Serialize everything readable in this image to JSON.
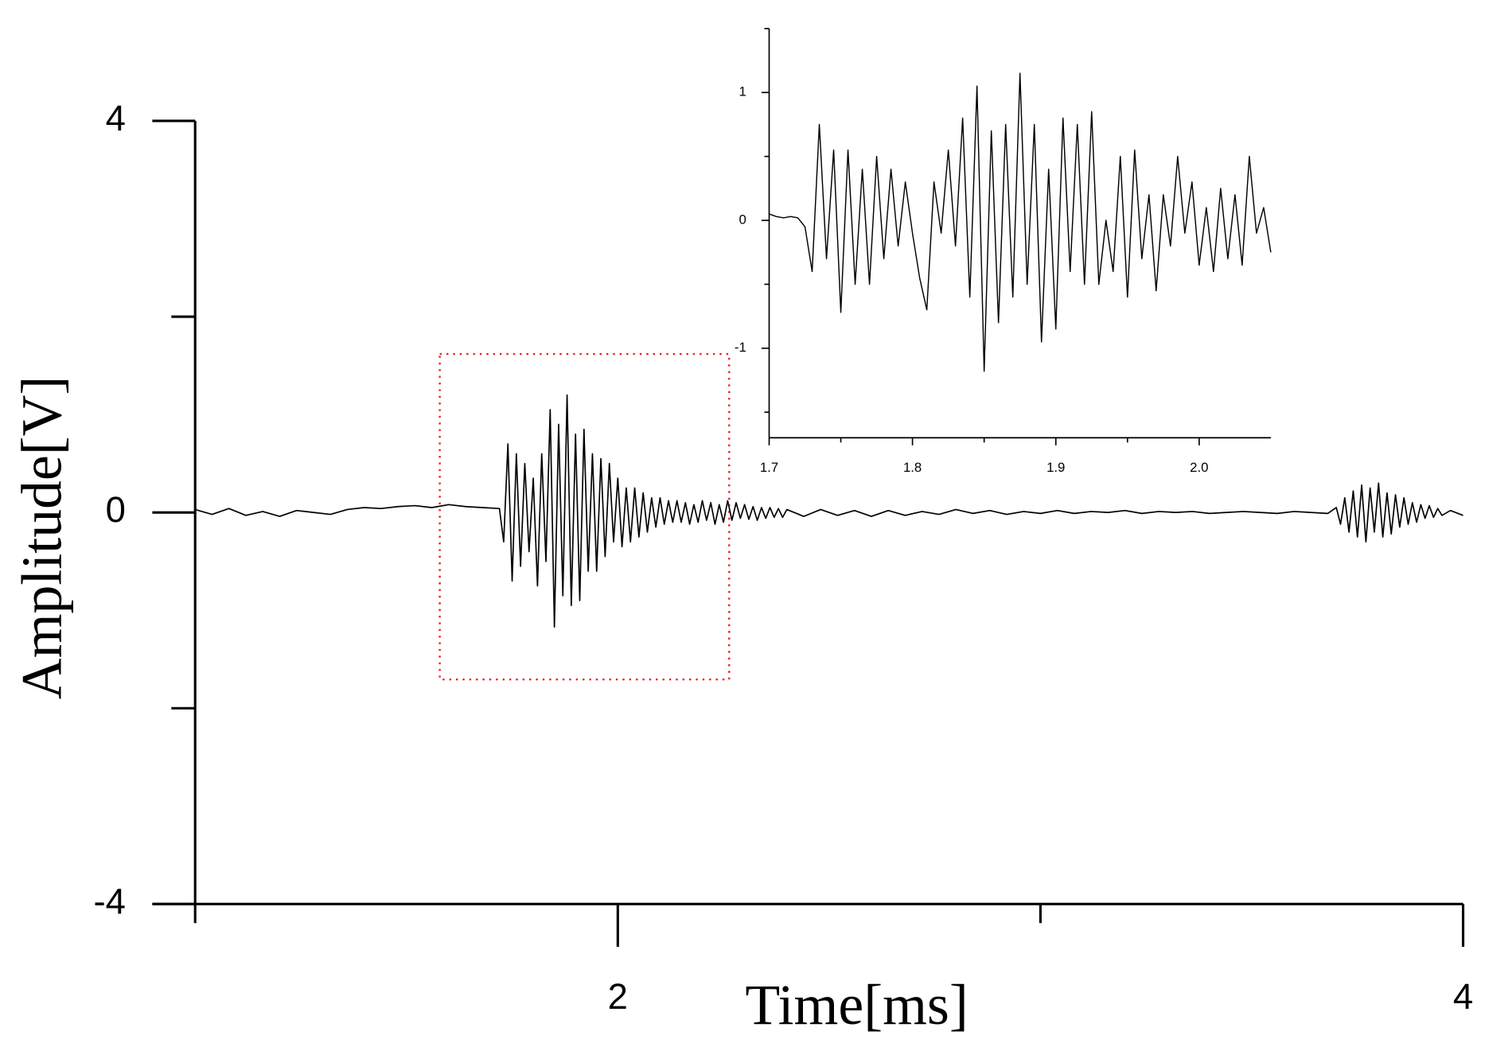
{
  "chart_data": [
    {
      "type": "line",
      "xlabel": "Time[ms]",
      "ylabel": "Amplitude[V]",
      "color": "#000000",
      "xlim": [
        1,
        4
      ],
      "ylim": [
        -4,
        4
      ],
      "xticks": [
        2,
        4
      ],
      "xminor_ticks": [
        1,
        3
      ],
      "yticks": [
        -4,
        0,
        4
      ],
      "yminor_ticks": [
        -2,
        2
      ],
      "x": [
        1.0,
        1.04,
        1.08,
        1.12,
        1.16,
        1.2,
        1.24,
        1.28,
        1.32,
        1.36,
        1.4,
        1.44,
        1.48,
        1.52,
        1.56,
        1.6,
        1.64,
        1.68,
        1.72,
        1.73,
        1.74,
        1.75,
        1.76,
        1.77,
        1.78,
        1.79,
        1.8,
        1.81,
        1.82,
        1.83,
        1.84,
        1.85,
        1.86,
        1.87,
        1.88,
        1.89,
        1.9,
        1.91,
        1.92,
        1.93,
        1.94,
        1.95,
        1.96,
        1.97,
        1.98,
        1.99,
        2.0,
        2.01,
        2.02,
        2.03,
        2.04,
        2.05,
        2.06,
        2.07,
        2.08,
        2.09,
        2.1,
        2.11,
        2.12,
        2.13,
        2.14,
        2.15,
        2.16,
        2.17,
        2.18,
        2.19,
        2.2,
        2.21,
        2.22,
        2.23,
        2.24,
        2.25,
        2.26,
        2.27,
        2.28,
        2.29,
        2.3,
        2.31,
        2.32,
        2.33,
        2.34,
        2.35,
        2.36,
        2.37,
        2.38,
        2.39,
        2.4,
        2.44,
        2.48,
        2.52,
        2.56,
        2.6,
        2.64,
        2.68,
        2.72,
        2.76,
        2.8,
        2.84,
        2.88,
        2.92,
        2.96,
        3.0,
        3.04,
        3.08,
        3.12,
        3.16,
        3.2,
        3.24,
        3.28,
        3.32,
        3.36,
        3.4,
        3.44,
        3.48,
        3.52,
        3.56,
        3.6,
        3.64,
        3.68,
        3.7,
        3.71,
        3.72,
        3.73,
        3.74,
        3.75,
        3.76,
        3.77,
        3.78,
        3.79,
        3.8,
        3.81,
        3.82,
        3.83,
        3.84,
        3.85,
        3.86,
        3.87,
        3.88,
        3.89,
        3.9,
        3.91,
        3.92,
        3.93,
        3.94,
        3.95,
        3.97,
        4.0
      ],
      "values": [
        0.03,
        -0.02,
        0.04,
        -0.03,
        0.01,
        -0.04,
        0.02,
        0.0,
        -0.02,
        0.03,
        0.05,
        0.04,
        0.06,
        0.07,
        0.05,
        0.08,
        0.06,
        0.05,
        0.04,
        -0.3,
        0.7,
        -0.7,
        0.6,
        -0.55,
        0.5,
        -0.4,
        0.35,
        -0.75,
        0.6,
        -0.5,
        1.05,
        -1.17,
        0.9,
        -0.85,
        1.2,
        -0.95,
        0.8,
        -0.9,
        0.85,
        -0.6,
        0.6,
        -0.6,
        0.55,
        -0.45,
        0.5,
        -0.3,
        0.35,
        -0.35,
        0.25,
        -0.3,
        0.25,
        -0.25,
        0.2,
        -0.2,
        0.15,
        -0.15,
        0.15,
        -0.12,
        0.12,
        -0.1,
        0.12,
        -0.1,
        0.1,
        -0.12,
        0.08,
        -0.1,
        0.12,
        -0.08,
        0.1,
        -0.12,
        0.08,
        -0.1,
        0.12,
        -0.08,
        0.1,
        -0.06,
        0.08,
        -0.07,
        0.06,
        -0.08,
        0.05,
        -0.06,
        0.05,
        -0.05,
        0.04,
        -0.05,
        0.03,
        -0.04,
        0.03,
        -0.03,
        0.02,
        -0.04,
        0.02,
        -0.03,
        0.01,
        -0.02,
        0.03,
        -0.01,
        0.02,
        -0.02,
        0.01,
        -0.01,
        0.02,
        -0.01,
        0.01,
        0.0,
        0.02,
        -0.01,
        0.01,
        0.0,
        0.01,
        -0.01,
        0.0,
        0.01,
        0.0,
        -0.01,
        0.01,
        0.0,
        -0.01,
        0.05,
        -0.12,
        0.15,
        -0.2,
        0.22,
        -0.25,
        0.28,
        -0.3,
        0.25,
        -0.2,
        0.3,
        -0.25,
        0.2,
        -0.22,
        0.18,
        -0.15,
        0.15,
        -0.12,
        0.1,
        -0.1,
        0.08,
        -0.06,
        0.07,
        -0.05,
        0.04,
        -0.03,
        0.02,
        -0.03
      ]
    },
    {
      "type": "line",
      "color": "#000000",
      "xlim": [
        1.7,
        2.05
      ],
      "ylim": [
        -1.7,
        1.5
      ],
      "xticks": [
        1.7,
        1.8,
        1.9,
        {
          "value": 2,
          "label": "2.0"
        }
      ],
      "xminor_ticks": [
        1.75,
        1.85,
        1.95
      ],
      "yticks": [
        -1,
        0,
        1
      ],
      "yminor_ticks": [
        -1.5,
        -0.5,
        0.5,
        1.5
      ],
      "x": [
        1.7,
        1.705,
        1.71,
        1.715,
        1.72,
        1.725,
        1.73,
        1.735,
        1.74,
        1.745,
        1.75,
        1.755,
        1.76,
        1.765,
        1.77,
        1.775,
        1.78,
        1.785,
        1.79,
        1.795,
        1.8,
        1.805,
        1.81,
        1.815,
        1.82,
        1.825,
        1.83,
        1.835,
        1.84,
        1.845,
        1.85,
        1.855,
        1.86,
        1.865,
        1.87,
        1.875,
        1.88,
        1.885,
        1.89,
        1.895,
        1.9,
        1.905,
        1.91,
        1.915,
        1.92,
        1.925,
        1.93,
        1.935,
        1.94,
        1.945,
        1.95,
        1.955,
        1.96,
        1.965,
        1.97,
        1.975,
        1.98,
        1.985,
        1.99,
        1.995,
        2.0,
        2.005,
        2.01,
        2.015,
        2.02,
        2.025,
        2.03,
        2.035,
        2.04,
        2.045,
        2.05
      ],
      "values": [
        0.05,
        0.03,
        0.02,
        0.03,
        0.02,
        -0.05,
        -0.4,
        0.75,
        -0.3,
        0.55,
        -0.72,
        0.55,
        -0.5,
        0.4,
        -0.5,
        0.5,
        -0.3,
        0.4,
        -0.2,
        0.3,
        -0.1,
        -0.45,
        -0.7,
        0.3,
        -0.1,
        0.55,
        -0.2,
        0.8,
        -0.6,
        1.05,
        -1.18,
        0.7,
        -0.8,
        0.75,
        -0.6,
        1.15,
        -0.5,
        0.75,
        -0.95,
        0.4,
        -0.85,
        0.8,
        -0.4,
        0.75,
        -0.5,
        0.85,
        -0.5,
        0.0,
        -0.4,
        0.5,
        -0.6,
        0.55,
        -0.3,
        0.2,
        -0.55,
        0.2,
        -0.2,
        0.5,
        -0.1,
        0.3,
        -0.35,
        0.1,
        -0.4,
        0.25,
        -0.3,
        0.2,
        -0.35,
        0.5,
        -0.1,
        0.1,
        -0.25
      ]
    }
  ]
}
